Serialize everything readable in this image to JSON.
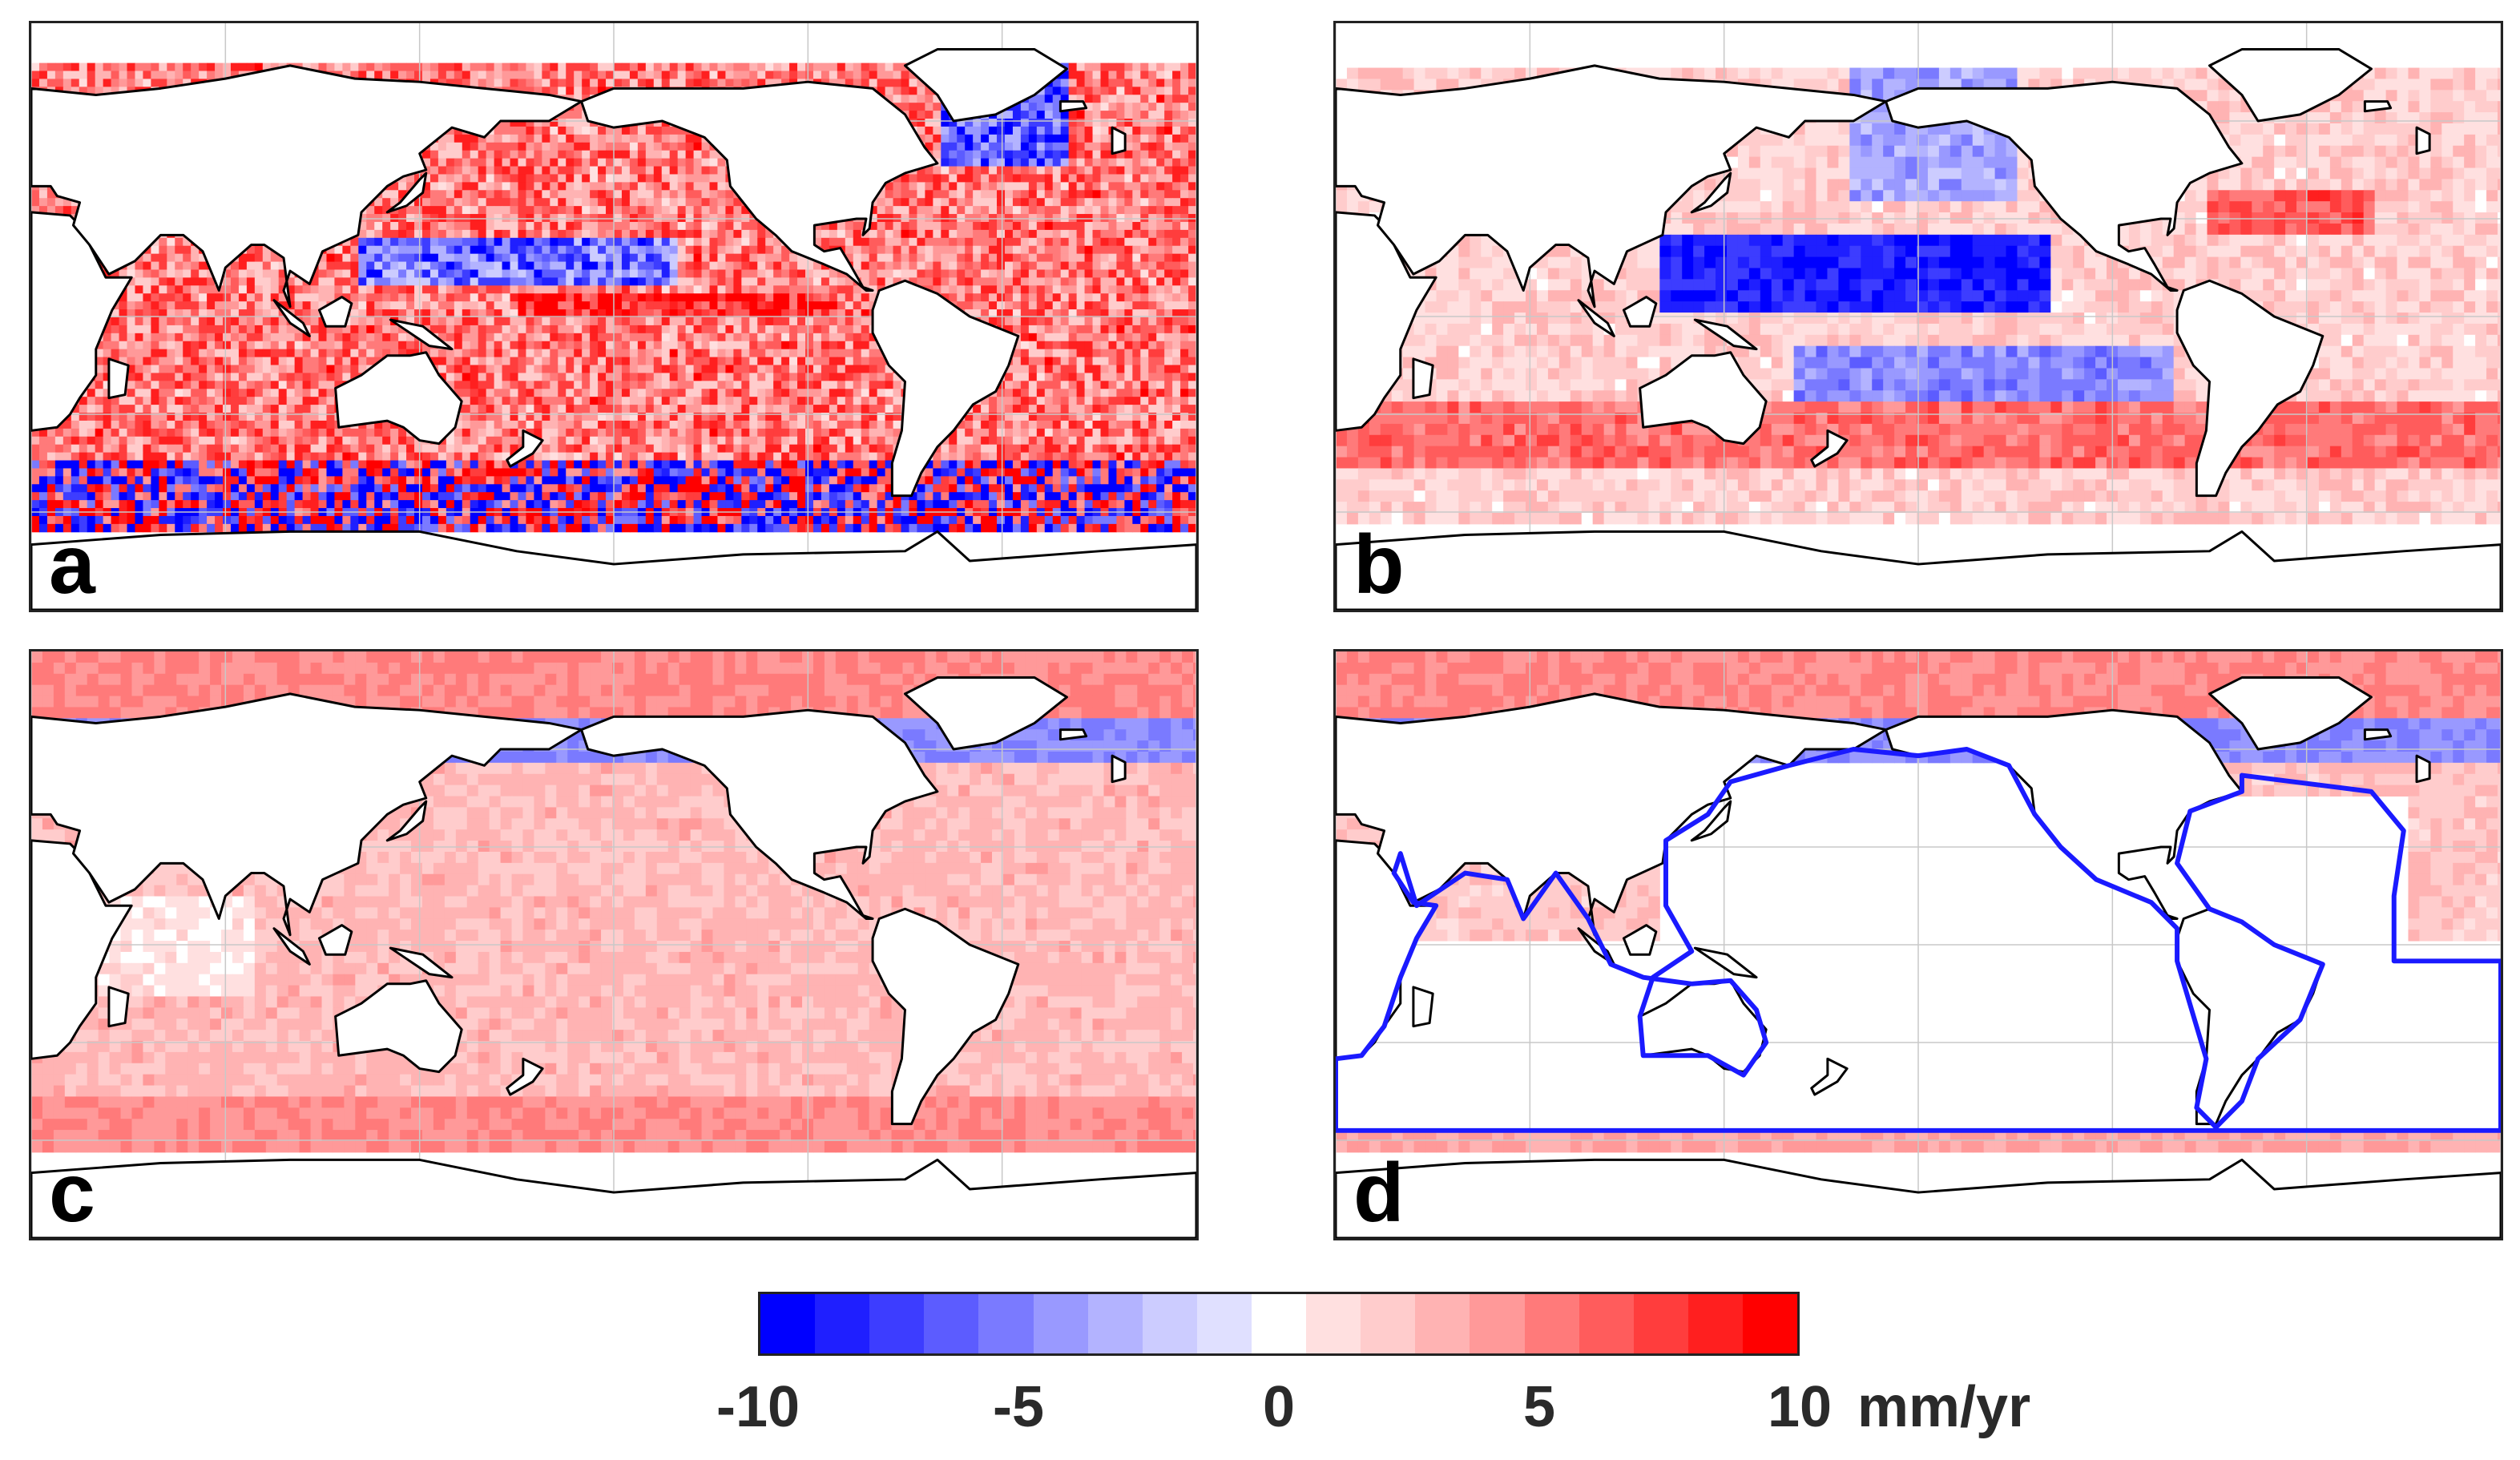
{
  "panels": [
    {
      "label": "a",
      "style": "noisy"
    },
    {
      "label": "b",
      "style": "smooth"
    },
    {
      "label": "c",
      "style": "light"
    },
    {
      "label": "d",
      "style": "masked"
    }
  ],
  "colorbar": {
    "min": -10,
    "max": 10,
    "steps": 21,
    "tick_labels": [
      "-10",
      "-5",
      "0",
      "5",
      "10"
    ],
    "tick_values": [
      -10,
      -5,
      0,
      5,
      10
    ],
    "unit": "mm/yr",
    "colors": [
      "#0000ff",
      "#1f1fff",
      "#3d3dff",
      "#5c5cff",
      "#7a7aff",
      "#9999ff",
      "#b3b3ff",
      "#ccccff",
      "#e0e0ff",
      "#ffffff",
      "#ffe0e0",
      "#ffcccc",
      "#ffb3b3",
      "#ff9999",
      "#ff7a7a",
      "#ff5c5c",
      "#ff3d3d",
      "#ff1f1f",
      "#ff0000"
    ]
  },
  "colors": {
    "land": "#ffffff",
    "coast": "#000000",
    "mask_boundary": "#1a1aff",
    "grid": "#c8c8c8"
  }
}
